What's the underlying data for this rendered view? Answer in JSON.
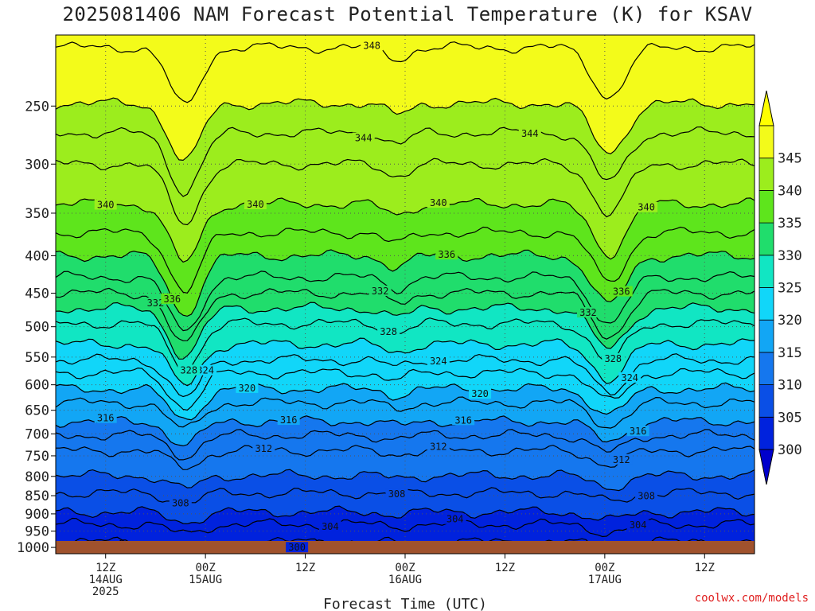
{
  "chart_data": {
    "type": "heatmap",
    "title": "2025081406 NAM Forecast Potential Temperature (K) for KSAV",
    "xlabel": "Forecast Time (UTC)",
    "ylabel": "",
    "units": "K",
    "y_ticks": [
      250,
      300,
      350,
      400,
      450,
      500,
      550,
      600,
      650,
      700,
      750,
      800,
      850,
      900,
      950,
      1000
    ],
    "y_range": [
      200,
      1020
    ],
    "x_range_hours": [
      0,
      84
    ],
    "x_ticks": [
      {
        "hour": 6,
        "labels": [
          "12Z",
          "14AUG",
          "2025"
        ]
      },
      {
        "hour": 18,
        "labels": [
          "00Z",
          "15AUG"
        ]
      },
      {
        "hour": 30,
        "labels": [
          "12Z"
        ]
      },
      {
        "hour": 42,
        "labels": [
          "00Z",
          "16AUG"
        ]
      },
      {
        "hour": 54,
        "labels": [
          "12Z"
        ]
      },
      {
        "hour": 66,
        "labels": [
          "00Z",
          "17AUG"
        ]
      },
      {
        "hour": 78,
        "labels": [
          "12Z"
        ]
      }
    ],
    "colorbar": {
      "ticks": [
        300,
        305,
        310,
        315,
        320,
        325,
        330,
        335,
        340,
        345
      ],
      "colors": [
        "#0022dd",
        "#0a4fe6",
        "#1577ee",
        "#12a6f5",
        "#11d6f9",
        "#11e6c3",
        "#20dd6c",
        "#5ee51c",
        "#9ced1d",
        "#f3fb1a"
      ],
      "underflow_color": "#0000cc",
      "overflow_color": "#ffff00"
    },
    "contours": [
      {
        "theta": 300,
        "p": 995,
        "labels": [
          {
            "hour": 29,
            "text": "300"
          }
        ]
      },
      {
        "theta": 302,
        "p": 983,
        "labels": []
      },
      {
        "theta": 304,
        "p": 930,
        "labels": [
          {
            "hour": 33,
            "text": "304"
          },
          {
            "hour": 48,
            "text": "304"
          },
          {
            "hour": 70,
            "text": "304"
          }
        ]
      },
      {
        "theta": 306,
        "p": 895,
        "labels": []
      },
      {
        "theta": 308,
        "p": 843,
        "labels": [
          {
            "hour": 15,
            "text": "308"
          },
          {
            "hour": 41,
            "text": "308"
          },
          {
            "hour": 71,
            "text": "308"
          }
        ]
      },
      {
        "theta": 310,
        "p": 798,
        "labels": []
      },
      {
        "theta": 312,
        "p": 738,
        "labels": [
          {
            "hour": 25,
            "text": "312"
          },
          {
            "hour": 46,
            "text": "312"
          },
          {
            "hour": 68,
            "text": "312"
          }
        ]
      },
      {
        "theta": 314,
        "p": 703,
        "labels": []
      },
      {
        "theta": 316,
        "p": 673,
        "labels": [
          {
            "hour": 6,
            "text": "316"
          },
          {
            "hour": 28,
            "text": "316"
          },
          {
            "hour": 49,
            "text": "316"
          },
          {
            "hour": 70,
            "text": "316"
          }
        ]
      },
      {
        "theta": 318,
        "p": 635,
        "labels": []
      },
      {
        "theta": 320,
        "p": 608,
        "labels": [
          {
            "hour": 23,
            "text": "320"
          },
          {
            "hour": 51,
            "text": "320"
          }
        ]
      },
      {
        "theta": 322,
        "p": 578,
        "labels": []
      },
      {
        "theta": 324,
        "p": 555,
        "labels": [
          {
            "hour": 18,
            "text": "324"
          },
          {
            "hour": 46,
            "text": "324"
          },
          {
            "hour": 69,
            "text": "324"
          }
        ]
      },
      {
        "theta": 326,
        "p": 528,
        "labels": []
      },
      {
        "theta": 328,
        "p": 495,
        "labels": [
          {
            "hour": 16,
            "text": "328"
          },
          {
            "hour": 40,
            "text": "328"
          },
          {
            "hour": 67,
            "text": "328"
          }
        ]
      },
      {
        "theta": 330,
        "p": 472,
        "labels": []
      },
      {
        "theta": 332,
        "p": 450,
        "labels": [
          {
            "hour": 12,
            "text": "332"
          },
          {
            "hour": 39,
            "text": "332"
          },
          {
            "hour": 64,
            "text": "332"
          }
        ]
      },
      {
        "theta": 334,
        "p": 428,
        "labels": []
      },
      {
        "theta": 336,
        "p": 400,
        "labels": [
          {
            "hour": 14,
            "text": "336"
          },
          {
            "hour": 47,
            "text": "336"
          },
          {
            "hour": 68,
            "text": "336"
          }
        ]
      },
      {
        "theta": 338,
        "p": 372,
        "labels": []
      },
      {
        "theta": 340,
        "p": 340,
        "labels": [
          {
            "hour": 6,
            "text": "340"
          },
          {
            "hour": 24,
            "text": "340"
          },
          {
            "hour": 46,
            "text": "340"
          },
          {
            "hour": 71,
            "text": "340"
          }
        ]
      },
      {
        "theta": 342,
        "p": 300,
        "labels": []
      },
      {
        "theta": 344,
        "p": 272,
        "labels": [
          {
            "hour": 37,
            "text": "344"
          },
          {
            "hour": 57,
            "text": "344"
          }
        ]
      },
      {
        "theta": 346,
        "p": 248,
        "labels": []
      },
      {
        "theta": 348,
        "p": 208,
        "labels": [
          {
            "hour": 38,
            "text": "348"
          }
        ]
      }
    ],
    "disturbances": [
      {
        "hour": 15.5,
        "width": 2.6,
        "amp": 62
      },
      {
        "hour": 66.5,
        "width": 2.8,
        "amp": 52
      },
      {
        "hour": 41.0,
        "width": 2.0,
        "amp": 12
      }
    ],
    "background_color": "#f3fb1a",
    "ground_color": "#a0522d",
    "legend": "right"
  },
  "credit": "coolwx.com/models"
}
